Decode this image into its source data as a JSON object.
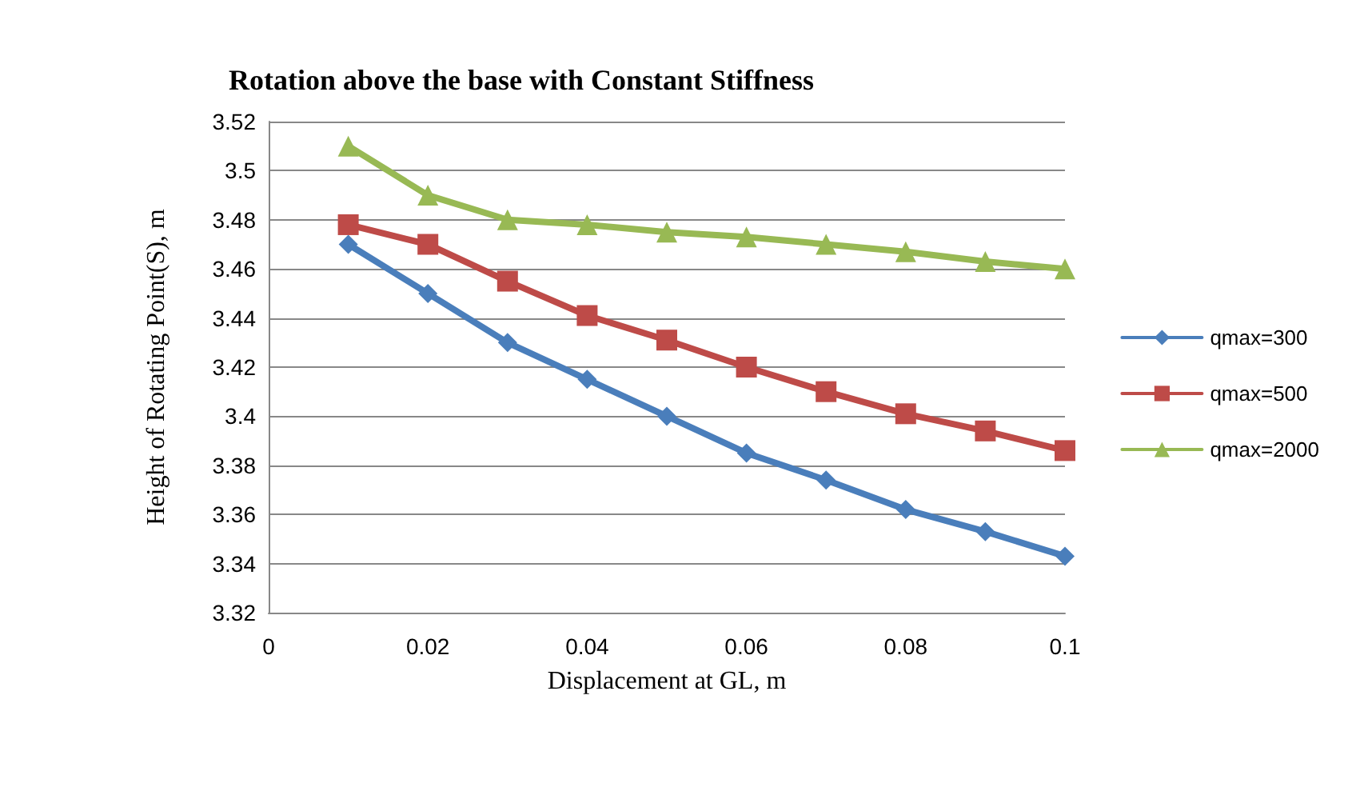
{
  "chart_data": {
    "type": "line",
    "title": "Rotation above the base with Constant Stiffness",
    "xlabel": "Displacement at GL, m",
    "ylabel": "Height of Rotating Point(S), m",
    "x": [
      0.01,
      0.02,
      0.03,
      0.04,
      0.05,
      0.06,
      0.07,
      0.08,
      0.09,
      0.1
    ],
    "series": [
      {
        "name": "qmax=300",
        "color": "#4a7ebb",
        "marker": "diamond",
        "values": [
          3.47,
          3.45,
          3.43,
          3.415,
          3.4,
          3.385,
          3.374,
          3.362,
          3.353,
          3.343
        ]
      },
      {
        "name": "qmax=500",
        "color": "#be4b48",
        "marker": "square",
        "values": [
          3.478,
          3.47,
          3.455,
          3.441,
          3.431,
          3.42,
          3.41,
          3.401,
          3.394,
          3.386
        ]
      },
      {
        "name": "qmax=2000",
        "color": "#98b954",
        "marker": "triangle",
        "values": [
          3.51,
          3.49,
          3.48,
          3.478,
          3.475,
          3.473,
          3.47,
          3.467,
          3.463,
          3.46
        ]
      }
    ],
    "xlim": [
      0,
      0.1
    ],
    "xticks": [
      0,
      0.02,
      0.04,
      0.06,
      0.08,
      0.1
    ],
    "ylim": [
      3.32,
      3.52
    ],
    "yticks": [
      3.32,
      3.34,
      3.36,
      3.38,
      3.4,
      3.42,
      3.44,
      3.46,
      3.48,
      3.5,
      3.52
    ],
    "grid": "y",
    "legend": "right",
    "line_style": "solid"
  }
}
